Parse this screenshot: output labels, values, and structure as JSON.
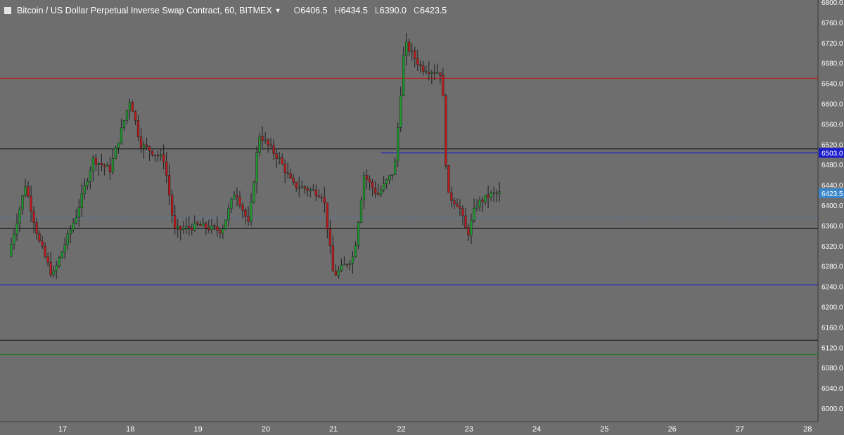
{
  "header": {
    "title": "Bitcoin / US Dollar Perpetual Inverse Swap Contract, 60, BITMEX",
    "ohlc": [
      {
        "key": "O",
        "value": "6406.5"
      },
      {
        "key": "H",
        "value": "6434.5"
      },
      {
        "key": "L",
        "value": "6390.0"
      },
      {
        "key": "C",
        "value": "6423.5"
      }
    ]
  },
  "colors": {
    "background": "#6e6e6e",
    "up": "#1e9b2e",
    "down": "#c01a1a",
    "wick": "#1f1f1f",
    "axis_text": "#ffffff",
    "price_tag_blue": "#1a1acc",
    "price_tag_last": "#3a86c8"
  },
  "chart_data": {
    "type": "candlestick",
    "y_axis": {
      "range": [
        5980,
        6800
      ],
      "ticks": [
        "6800.0",
        "6760.0",
        "6720.0",
        "6680.0",
        "6640.0",
        "6600.0",
        "6560.0",
        "6520.0",
        "6480.0",
        "6440.0",
        "6400.0",
        "6360.0",
        "6320.0",
        "6280.0",
        "6240.0",
        "6200.0",
        "6160.0",
        "6120.0",
        "6080.0",
        "6040.0",
        "6000.0"
      ]
    },
    "x_axis": {
      "ticks": [
        "17",
        "18",
        "19",
        "20",
        "21",
        "22",
        "23",
        "24",
        "25",
        "26",
        "27",
        "28"
      ]
    },
    "grid": false,
    "last_price": {
      "label": "6423.5",
      "value": 6423.5
    },
    "horizontal_lines": [
      {
        "price": 6650,
        "color": "#c01a1a"
      },
      {
        "price": 6511,
        "color": "#1f1f1f"
      },
      {
        "price": 6503,
        "color": "#1a1acc",
        "label": "6503.0",
        "start_day": 21.7
      },
      {
        "price": 6375,
        "color": "#4a7ccc",
        "style": "dotted"
      },
      {
        "price": 6354,
        "color": "#1f1f1f"
      },
      {
        "price": 6243,
        "color": "#1a1acc"
      },
      {
        "price": 6134,
        "color": "#1f1f1f"
      },
      {
        "price": 6106,
        "color": "#2a7a2a"
      }
    ],
    "key_points": [
      {
        "day": 16.2,
        "price": 6300
      },
      {
        "day": 16.45,
        "price": 6440
      },
      {
        "day": 16.65,
        "price": 6330
      },
      {
        "day": 16.85,
        "price": 6260
      },
      {
        "day": 17.2,
        "price": 6380
      },
      {
        "day": 17.45,
        "price": 6490
      },
      {
        "day": 17.7,
        "price": 6470
      },
      {
        "day": 18.0,
        "price": 6610
      },
      {
        "day": 18.15,
        "price": 6520
      },
      {
        "day": 18.5,
        "price": 6490
      },
      {
        "day": 18.65,
        "price": 6350
      },
      {
        "day": 19.0,
        "price": 6360
      },
      {
        "day": 19.35,
        "price": 6350
      },
      {
        "day": 19.55,
        "price": 6430
      },
      {
        "day": 19.75,
        "price": 6360
      },
      {
        "day": 19.9,
        "price": 6540
      },
      {
        "day": 20.2,
        "price": 6490
      },
      {
        "day": 20.4,
        "price": 6440
      },
      {
        "day": 20.65,
        "price": 6430
      },
      {
        "day": 20.85,
        "price": 6420
      },
      {
        "day": 21.0,
        "price": 6260
      },
      {
        "day": 21.3,
        "price": 6300
      },
      {
        "day": 21.45,
        "price": 6460
      },
      {
        "day": 21.65,
        "price": 6420
      },
      {
        "day": 21.9,
        "price": 6470
      },
      {
        "day": 22.05,
        "price": 6720
      },
      {
        "day": 22.3,
        "price": 6670
      },
      {
        "day": 22.6,
        "price": 6660
      },
      {
        "day": 22.68,
        "price": 6420
      },
      {
        "day": 22.85,
        "price": 6400
      },
      {
        "day": 22.98,
        "price": 6340
      },
      {
        "day": 23.1,
        "price": 6400
      },
      {
        "day": 23.3,
        "price": 6420
      },
      {
        "day": 23.45,
        "price": 6423.5
      }
    ]
  }
}
